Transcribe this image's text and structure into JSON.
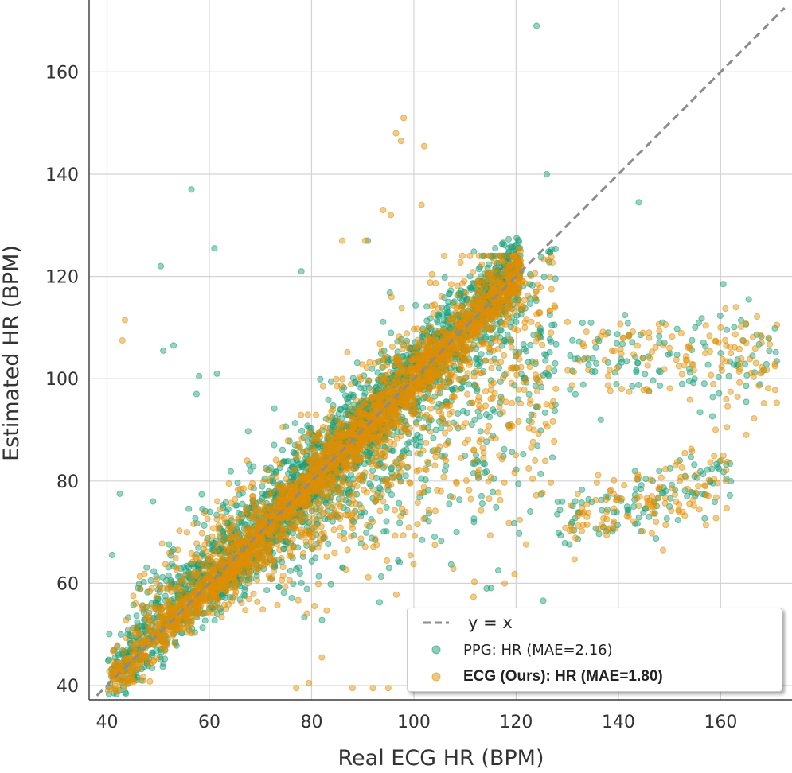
{
  "chart_data": {
    "type": "scatter",
    "title": "",
    "xlabel": "Real ECG HR (BPM)",
    "ylabel": "Estimated HR (BPM)",
    "xlim": [
      38,
      173
    ],
    "ylim": [
      38,
      171
    ],
    "x_ticks": [
      40,
      60,
      80,
      100,
      120,
      140,
      160
    ],
    "y_ticks": [
      40,
      60,
      80,
      100,
      120,
      140,
      160
    ],
    "grid": true,
    "legend_position": "bottom-right",
    "reference_line": {
      "label": "y = x",
      "color": "#8c8c8c",
      "style": "dashed"
    },
    "series": [
      {
        "name": "PPG: HR (MAE=2.16)",
        "color": "#1a9e77",
        "opacity": 0.45,
        "generation": {
          "seed": 11,
          "count": 3200,
          "main_spread": 3.2,
          "band_offset": 3.0
        },
        "outliers": [
          [
            124,
            169
          ],
          [
            126,
            140
          ],
          [
            144,
            134.5
          ],
          [
            56.5,
            137
          ],
          [
            50.5,
            122
          ],
          [
            61,
            125.5
          ],
          [
            78,
            121
          ],
          [
            41,
            65.5
          ],
          [
            42.5,
            77.5
          ],
          [
            49,
            76
          ],
          [
            53,
            106.5
          ],
          [
            51,
            105.5
          ],
          [
            58,
            100.5
          ],
          [
            61.5,
            101
          ],
          [
            57.5,
            97
          ],
          [
            91,
            127
          ],
          [
            160.5,
            118.5
          ],
          [
            165.5,
            115.5
          ],
          [
            148,
            82
          ],
          [
            152,
            84
          ],
          [
            155,
            77
          ],
          [
            158,
            80
          ],
          [
            150,
            75
          ],
          [
            146,
            73
          ],
          [
            143,
            75
          ],
          [
            155,
            110
          ],
          [
            160,
            105
          ],
          [
            149,
            107
          ],
          [
            138,
            109
          ],
          [
            135,
            104
          ]
        ]
      },
      {
        "name": "ECG (Ours): HR (MAE=1.80)",
        "color": "#de8f05",
        "opacity": 0.45,
        "generation": {
          "seed": 29,
          "count": 3400,
          "main_spread": 2.6,
          "band_offset": 0.0
        },
        "outliers": [
          [
            98,
            151
          ],
          [
            96.5,
            148
          ],
          [
            97.5,
            146.5
          ],
          [
            102,
            145.5
          ],
          [
            94,
            133
          ],
          [
            95.5,
            132
          ],
          [
            101.5,
            134
          ],
          [
            90.5,
            127
          ],
          [
            86,
            127
          ],
          [
            43.5,
            111.5
          ],
          [
            43,
            107.5
          ],
          [
            79.5,
            40.5
          ],
          [
            77,
            39.5
          ],
          [
            82,
            45.5
          ],
          [
            88,
            39.5
          ],
          [
            92,
            39.5
          ],
          [
            95,
            39.5
          ],
          [
            171,
            110.5
          ],
          [
            165,
            107
          ],
          [
            168,
            107
          ],
          [
            160,
            110
          ],
          [
            162,
            105
          ],
          [
            163,
            114
          ],
          [
            157,
            105
          ],
          [
            154,
            106
          ],
          [
            150,
            106
          ],
          [
            146,
            109
          ],
          [
            141,
            108
          ],
          [
            159,
            90
          ],
          [
            165,
            89
          ],
          [
            142,
            73
          ],
          [
            147,
            75
          ],
          [
            152,
            80
          ],
          [
            157,
            79
          ],
          [
            161,
            80
          ]
        ]
      }
    ]
  },
  "legend": {
    "items": [
      {
        "label": "y = x",
        "kind": "line"
      },
      {
        "label": "PPG: HR (MAE=2.16)",
        "kind": "marker",
        "color": "#1a9e77"
      },
      {
        "label": "ECG (Ours): HR (MAE=1.80)",
        "kind": "marker",
        "color": "#de8f05"
      }
    ]
  }
}
